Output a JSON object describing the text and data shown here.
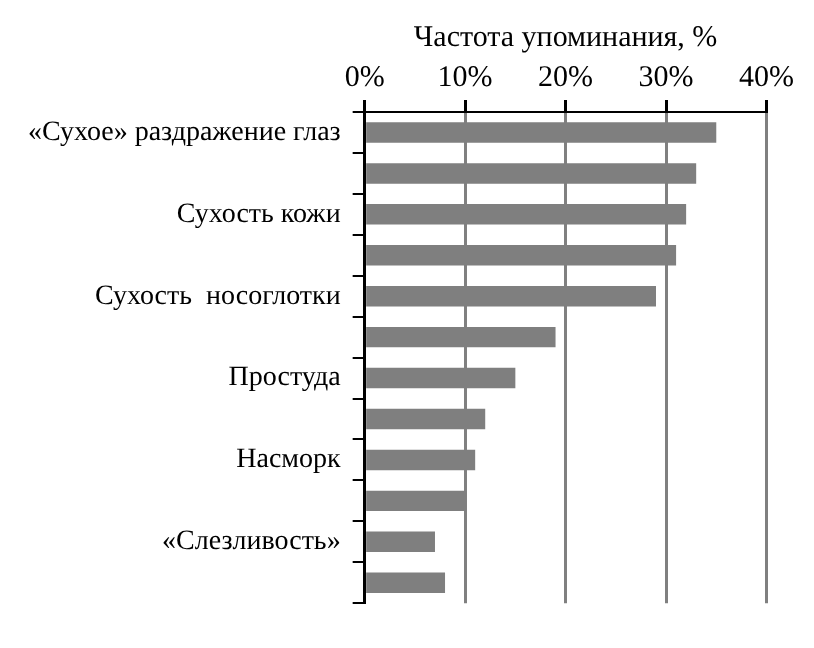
{
  "chart_data": {
    "type": "bar",
    "orientation": "horizontal",
    "xlabel": "Частота упоминания, %",
    "categories": [
      "«Сухое» раздражение глаз",
      null,
      "Сухость кожи",
      null,
      "Сухость  носоглотки",
      null,
      "Простуда",
      null,
      "Насморк",
      null,
      "«Слезливость»",
      null
    ],
    "values": [
      35,
      33,
      32,
      31,
      29,
      19,
      15,
      12,
      11,
      10,
      7,
      8
    ],
    "color": "#7f7f7f",
    "xlim": [
      0,
      40
    ],
    "xticks": [
      {
        "value": 0,
        "label": "0%"
      },
      {
        "value": 10,
        "label": "10%"
      },
      {
        "value": 20,
        "label": "20%"
      },
      {
        "value": 30,
        "label": "30%"
      },
      {
        "value": 40,
        "label": "40%"
      }
    ],
    "grid": "x",
    "legend": false
  }
}
